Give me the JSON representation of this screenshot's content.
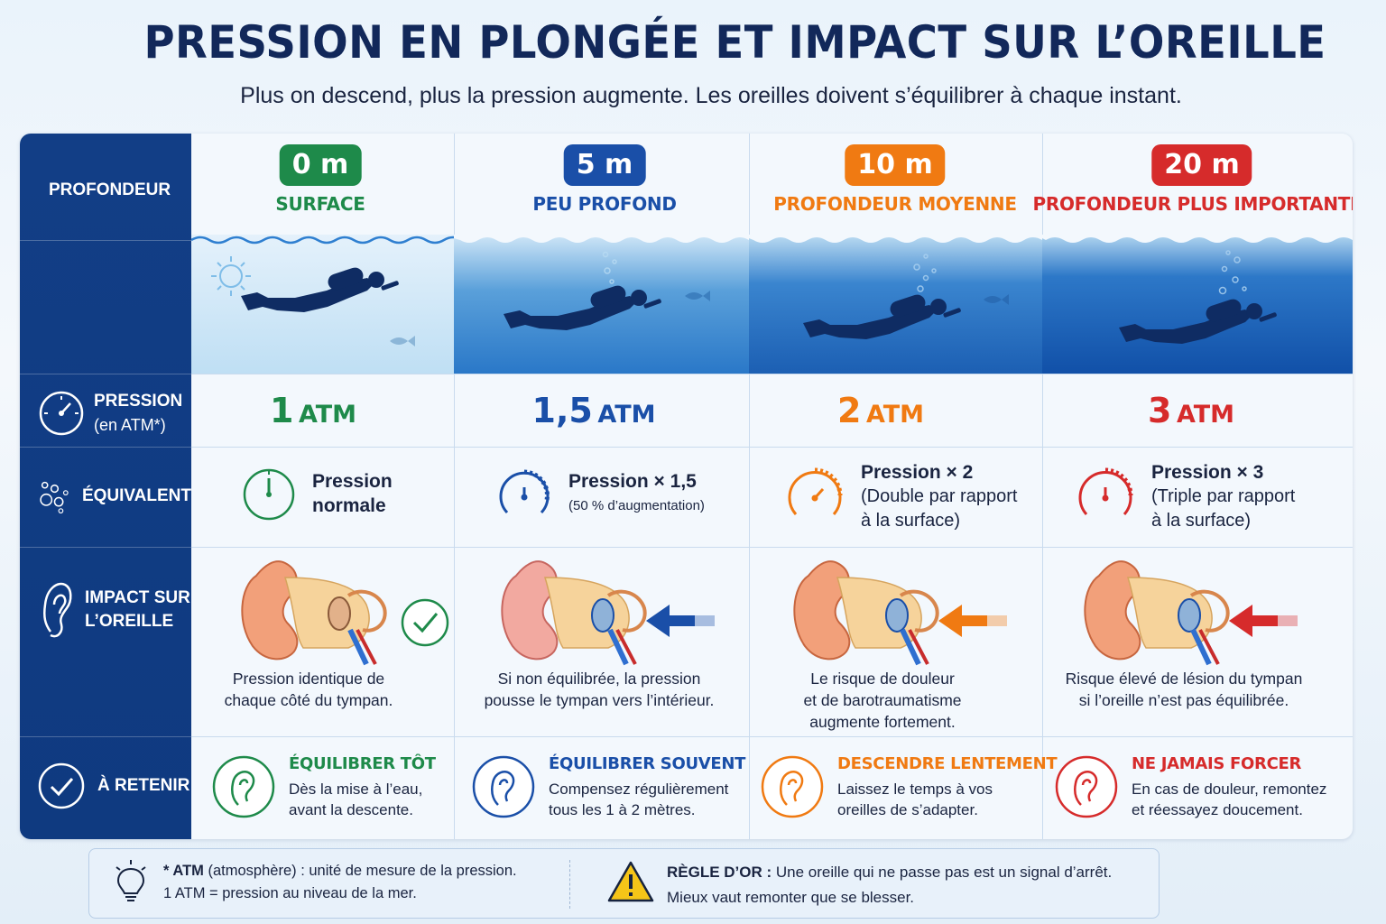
{
  "title": "PRESSION EN PLONGÉE ET IMPACT SUR L’OREILLE",
  "subtitle": "Plus on descend, plus la pression augmente. Les oreilles doivent s’équilibrer à chaque instant.",
  "rows": {
    "depth": "PROFONDEUR",
    "pressure": "PRESSION",
    "pressure_unit": "(en ATM*)",
    "equivalent": "ÉQUIVALENT",
    "impact_1": "IMPACT SUR",
    "impact_2": "L’OREILLE",
    "remember": "À RETENIR"
  },
  "columns": [
    {
      "depth": "0 m",
      "name": "SURFACE",
      "color": "#1e8a4a",
      "atm_num": "1",
      "atm_unit": "ATM",
      "eq_l1": "Pression",
      "eq_l2": "normale",
      "eq_l3": "",
      "impact_l1": "Pression identique de",
      "impact_l2": "chaque côté du tympan.",
      "impact_l3": "",
      "tip_title": "ÉQUILIBRER TÔT",
      "tip_l1": "Dès la mise à l’eau,",
      "tip_l2": "avant la descente.",
      "ear_indicator": "check-icon"
    },
    {
      "depth": "5 m",
      "name": "PEU PROFOND",
      "color": "#1a4fa8",
      "atm_num": "1,5",
      "atm_unit": "ATM",
      "eq_l1": "Pression × 1,5",
      "eq_l2": "(50 % d’augmentation)",
      "eq_l3": "",
      "impact_l1": "Si non équilibrée, la pression",
      "impact_l2": "pousse le tympan vers l’intérieur.",
      "impact_l3": "",
      "tip_title": "ÉQUILIBRER SOUVENT",
      "tip_l1": "Compensez régulièrement",
      "tip_l2": "tous les 1 à 2 mètres.",
      "ear_indicator": "arrow-left-icon"
    },
    {
      "depth": "10 m",
      "name": "PROFONDEUR MOYENNE",
      "color": "#f07a12",
      "atm_num": "2",
      "atm_unit": "ATM",
      "eq_l1": "Pression × 2",
      "eq_l2": "(Double par rapport",
      "eq_l3": "à la surface)",
      "impact_l1": "Le risque de douleur",
      "impact_l2": "et de barotraumatisme",
      "impact_l3": "augmente fortement.",
      "tip_title": "DESCENDRE LENTEMENT",
      "tip_l1": "Laissez le temps à vos",
      "tip_l2": "oreilles de s’adapter.",
      "ear_indicator": "arrow-left-icon"
    },
    {
      "depth": "20 m",
      "name": "PROFONDEUR PLUS IMPORTANTE",
      "color": "#d62b2b",
      "atm_num": "3",
      "atm_unit": "ATM",
      "eq_l1": "Pression × 3",
      "eq_l2": "(Triple par rapport",
      "eq_l3": "à la surface)",
      "impact_l1": "Risque élevé de lésion du tympan",
      "impact_l2": "si l’oreille n’est pas équilibrée.",
      "impact_l3": "",
      "tip_title": "NE JAMAIS FORCER",
      "tip_l1": "En cas de douleur, remontez",
      "tip_l2": "et réessayez doucement.",
      "ear_indicator": "arrow-left-icon"
    }
  ],
  "footer": {
    "note_bold": "* ATM",
    "note_rest": " (atmosphère) : unité de mesure de la pression.",
    "note_l2": "1 ATM = pression au niveau de la mer.",
    "rule_bold": "RÈGLE D’OR :",
    "rule_rest": " Une oreille qui ne passe pas est un signal d’arrêt.",
    "rule_l2": "Mieux vaut remonter que se blesser."
  }
}
